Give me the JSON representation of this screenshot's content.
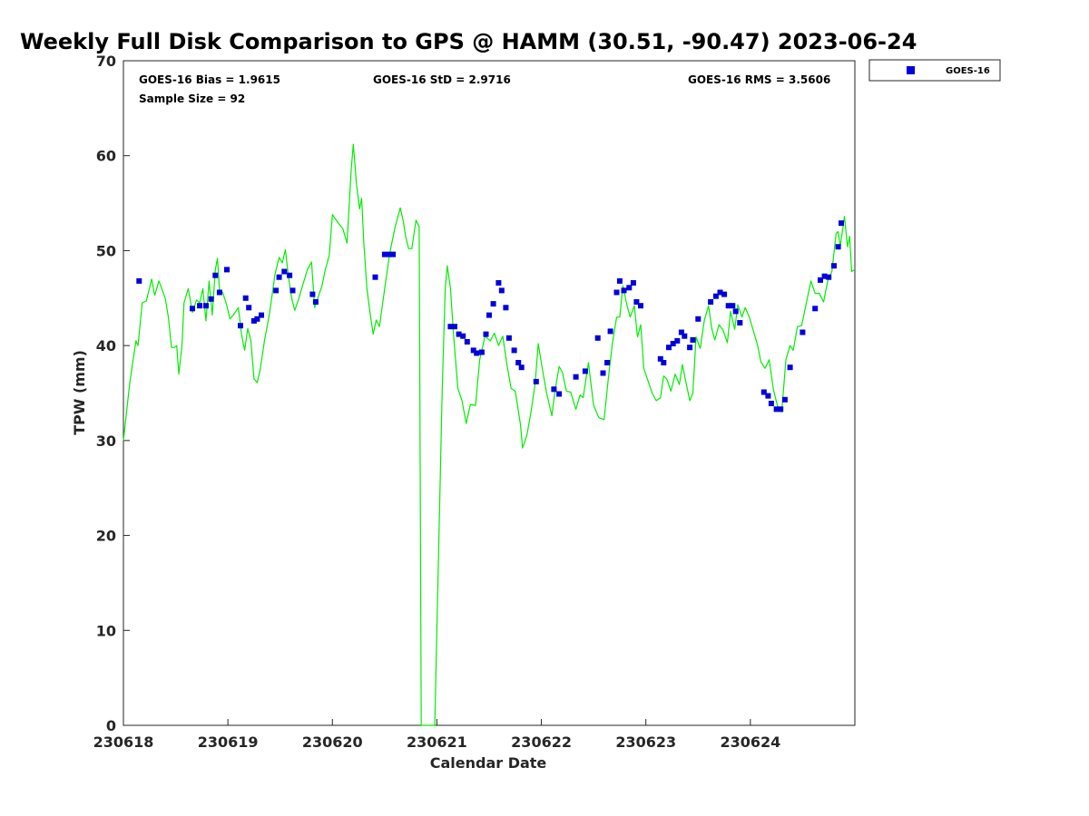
{
  "chart_data": {
    "type": "scatter",
    "title": "Weekly Full Disk Comparison to GPS @ HAMM (30.51, -90.47) 2023-06-24",
    "xlabel": "Calendar Date",
    "ylabel": "TPW (mm)",
    "xlim": [
      230618,
      230625
    ],
    "ylim": [
      0,
      70
    ],
    "grid": false,
    "legend_position": "top-right, outside plot",
    "x_ticks": [
      "230618",
      "230619",
      "230620",
      "230621",
      "230622",
      "230623",
      "230624"
    ],
    "y_ticks": [
      "0",
      "10",
      "20",
      "30",
      "40",
      "50",
      "60",
      "70"
    ],
    "stats": {
      "bias": "GOES-16 Bias = 1.9615",
      "std": "GOES-16 StD = 2.9716",
      "rms": "GOES-16 RMS = 3.5606",
      "sample": "Sample Size = 92"
    },
    "series": [
      {
        "name": "GOES-16",
        "kind": "scatter",
        "marker": "square",
        "color": "#0000dd",
        "points": [
          [
            0.15,
            46.8
          ],
          [
            0.66,
            43.9
          ],
          [
            0.73,
            44.2
          ],
          [
            0.79,
            44.2
          ],
          [
            0.84,
            44.9
          ],
          [
            0.88,
            47.4
          ],
          [
            0.92,
            45.6
          ],
          [
            0.99,
            48.0
          ],
          [
            1.12,
            42.1
          ],
          [
            1.17,
            45.0
          ],
          [
            1.2,
            44.0
          ],
          [
            1.25,
            42.6
          ],
          [
            1.28,
            42.8
          ],
          [
            1.32,
            43.2
          ],
          [
            1.46,
            45.8
          ],
          [
            1.49,
            47.2
          ],
          [
            1.54,
            47.8
          ],
          [
            1.59,
            47.4
          ],
          [
            1.62,
            45.8
          ],
          [
            1.81,
            45.4
          ],
          [
            1.84,
            44.6
          ],
          [
            2.41,
            47.2
          ],
          [
            2.5,
            49.6
          ],
          [
            2.54,
            49.6
          ],
          [
            2.58,
            49.6
          ],
          [
            3.13,
            42.0
          ],
          [
            3.17,
            42.0
          ],
          [
            3.21,
            41.2
          ],
          [
            3.25,
            41.0
          ],
          [
            3.29,
            40.4
          ],
          [
            3.35,
            39.5
          ],
          [
            3.38,
            39.2
          ],
          [
            3.43,
            39.3
          ],
          [
            3.47,
            41.2
          ],
          [
            3.5,
            43.2
          ],
          [
            3.54,
            44.4
          ],
          [
            3.59,
            46.6
          ],
          [
            3.62,
            45.8
          ],
          [
            3.66,
            44.0
          ],
          [
            3.69,
            40.8
          ],
          [
            3.74,
            39.5
          ],
          [
            3.78,
            38.2
          ],
          [
            3.81,
            37.7
          ],
          [
            3.95,
            36.2
          ],
          [
            4.12,
            35.4
          ],
          [
            4.17,
            34.9
          ],
          [
            4.33,
            36.7
          ],
          [
            4.42,
            37.3
          ],
          [
            4.54,
            40.8
          ],
          [
            4.59,
            37.1
          ],
          [
            4.63,
            38.2
          ],
          [
            4.66,
            41.5
          ],
          [
            4.72,
            45.6
          ],
          [
            4.75,
            46.8
          ],
          [
            4.79,
            45.8
          ],
          [
            4.84,
            46.1
          ],
          [
            4.88,
            46.6
          ],
          [
            4.91,
            44.6
          ],
          [
            4.95,
            44.2
          ],
          [
            5.14,
            38.6
          ],
          [
            5.17,
            38.2
          ],
          [
            5.22,
            39.8
          ],
          [
            5.26,
            40.2
          ],
          [
            5.3,
            40.5
          ],
          [
            5.34,
            41.4
          ],
          [
            5.37,
            41.0
          ],
          [
            5.42,
            39.8
          ],
          [
            5.45,
            40.6
          ],
          [
            5.5,
            42.8
          ],
          [
            5.62,
            44.6
          ],
          [
            5.67,
            45.2
          ],
          [
            5.71,
            45.6
          ],
          [
            5.75,
            45.4
          ],
          [
            5.79,
            44.2
          ],
          [
            5.83,
            44.2
          ],
          [
            5.86,
            43.6
          ],
          [
            5.9,
            42.4
          ],
          [
            6.13,
            35.1
          ],
          [
            6.17,
            34.7
          ],
          [
            6.2,
            33.9
          ],
          [
            6.25,
            33.3
          ],
          [
            6.29,
            33.3
          ],
          [
            6.33,
            34.3
          ],
          [
            6.38,
            37.7
          ],
          [
            6.5,
            41.4
          ],
          [
            6.62,
            43.9
          ],
          [
            6.67,
            46.9
          ],
          [
            6.71,
            47.3
          ],
          [
            6.75,
            47.2
          ],
          [
            6.8,
            48.4
          ],
          [
            6.84,
            50.4
          ],
          [
            6.87,
            52.9
          ]
        ]
      },
      {
        "name": "GPS",
        "kind": "line",
        "color": "#00ee00",
        "points": [
          [
            0.0,
            30.0
          ],
          [
            0.06,
            36.0
          ],
          [
            0.12,
            40.5
          ],
          [
            0.14,
            40.0
          ],
          [
            0.18,
            44.5
          ],
          [
            0.22,
            44.7
          ],
          [
            0.27,
            47.0
          ],
          [
            0.3,
            45.3
          ],
          [
            0.34,
            46.8
          ],
          [
            0.4,
            45.0
          ],
          [
            0.43,
            43.0
          ],
          [
            0.46,
            39.8
          ],
          [
            0.49,
            39.8
          ],
          [
            0.51,
            40.0
          ],
          [
            0.53,
            37.0
          ],
          [
            0.56,
            40.0
          ],
          [
            0.58,
            44.5
          ],
          [
            0.62,
            46.0
          ],
          [
            0.66,
            43.5
          ],
          [
            0.7,
            44.8
          ],
          [
            0.73,
            44.5
          ],
          [
            0.76,
            46.0
          ],
          [
            0.79,
            42.6
          ],
          [
            0.82,
            46.8
          ],
          [
            0.85,
            43.2
          ],
          [
            0.88,
            48.0
          ],
          [
            0.9,
            49.2
          ],
          [
            0.92,
            45.8
          ],
          [
            0.95,
            45.6
          ],
          [
            0.99,
            44.2
          ],
          [
            1.02,
            42.8
          ],
          [
            1.05,
            43.2
          ],
          [
            1.1,
            44.0
          ],
          [
            1.13,
            41.2
          ],
          [
            1.16,
            39.5
          ],
          [
            1.19,
            41.8
          ],
          [
            1.22,
            40.5
          ],
          [
            1.25,
            36.5
          ],
          [
            1.28,
            36.1
          ],
          [
            1.31,
            37.5
          ],
          [
            1.35,
            40.5
          ],
          [
            1.4,
            43.5
          ],
          [
            1.45,
            47.5
          ],
          [
            1.49,
            49.3
          ],
          [
            1.52,
            48.7
          ],
          [
            1.55,
            50.1
          ],
          [
            1.58,
            47.2
          ],
          [
            1.61,
            45.0
          ],
          [
            1.64,
            43.7
          ],
          [
            1.68,
            45.0
          ],
          [
            1.72,
            46.5
          ],
          [
            1.76,
            48.0
          ],
          [
            1.8,
            48.8
          ],
          [
            1.83,
            44.0
          ],
          [
            1.87,
            45.3
          ],
          [
            1.9,
            46.3
          ],
          [
            1.93,
            47.9
          ],
          [
            1.97,
            49.5
          ],
          [
            2.0,
            53.8
          ],
          [
            2.05,
            53.0
          ],
          [
            2.1,
            52.3
          ],
          [
            2.14,
            50.8
          ],
          [
            2.18,
            58.5
          ],
          [
            2.2,
            61.2
          ],
          [
            2.23,
            57.0
          ],
          [
            2.26,
            54.4
          ],
          [
            2.28,
            55.5
          ],
          [
            2.3,
            51.0
          ],
          [
            2.33,
            46.0
          ],
          [
            2.36,
            43.5
          ],
          [
            2.39,
            41.2
          ],
          [
            2.42,
            42.7
          ],
          [
            2.45,
            42.0
          ],
          [
            2.5,
            46.0
          ],
          [
            2.55,
            49.8
          ],
          [
            2.6,
            52.5
          ],
          [
            2.65,
            54.5
          ],
          [
            2.68,
            53.0
          ],
          [
            2.7,
            51.5
          ],
          [
            2.73,
            50.2
          ],
          [
            2.76,
            50.2
          ],
          [
            2.8,
            53.2
          ],
          [
            2.83,
            52.5
          ],
          [
            2.85,
            0.0
          ],
          [
            2.98,
            0.0
          ],
          [
            3.0,
            10.0
          ],
          [
            3.05,
            35.0
          ],
          [
            3.08,
            46.0
          ],
          [
            3.1,
            48.4
          ],
          [
            3.13,
            46.0
          ],
          [
            3.16,
            41.0
          ],
          [
            3.2,
            35.5
          ],
          [
            3.24,
            34.2
          ],
          [
            3.28,
            31.8
          ],
          [
            3.32,
            33.8
          ],
          [
            3.37,
            33.7
          ],
          [
            3.41,
            38.5
          ],
          [
            3.46,
            41.0
          ],
          [
            3.51,
            40.5
          ],
          [
            3.55,
            41.3
          ],
          [
            3.59,
            40.0
          ],
          [
            3.63,
            41.0
          ],
          [
            3.67,
            38.0
          ],
          [
            3.71,
            35.5
          ],
          [
            3.75,
            35.2
          ],
          [
            3.8,
            31.7
          ],
          [
            3.82,
            29.2
          ],
          [
            3.86,
            30.5
          ],
          [
            3.9,
            33.0
          ],
          [
            3.94,
            36.0
          ],
          [
            3.97,
            40.2
          ],
          [
            4.01,
            37.5
          ],
          [
            4.05,
            35.0
          ],
          [
            4.1,
            32.6
          ],
          [
            4.13,
            35.2
          ],
          [
            4.17,
            37.8
          ],
          [
            4.2,
            37.2
          ],
          [
            4.24,
            35.2
          ],
          [
            4.28,
            35.1
          ],
          [
            4.33,
            33.3
          ],
          [
            4.37,
            34.8
          ],
          [
            4.4,
            34.5
          ],
          [
            4.45,
            38.2
          ],
          [
            4.5,
            33.7
          ],
          [
            4.55,
            32.4
          ],
          [
            4.6,
            32.2
          ],
          [
            4.64,
            36.5
          ],
          [
            4.68,
            40.3
          ],
          [
            4.72,
            43.0
          ],
          [
            4.75,
            43.0
          ],
          [
            4.78,
            46.3
          ],
          [
            4.82,
            44.2
          ],
          [
            4.85,
            43.0
          ],
          [
            4.89,
            44.2
          ],
          [
            4.92,
            40.9
          ],
          [
            4.95,
            42.2
          ],
          [
            4.98,
            37.6
          ],
          [
            5.02,
            36.3
          ],
          [
            5.06,
            35.0
          ],
          [
            5.1,
            34.2
          ],
          [
            5.14,
            34.5
          ],
          [
            5.17,
            36.8
          ],
          [
            5.2,
            36.5
          ],
          [
            5.24,
            35.2
          ],
          [
            5.28,
            37.0
          ],
          [
            5.32,
            35.9
          ],
          [
            5.35,
            38.0
          ],
          [
            5.38,
            36.3
          ],
          [
            5.42,
            34.2
          ],
          [
            5.45,
            35.0
          ],
          [
            5.48,
            40.9
          ],
          [
            5.52,
            39.7
          ],
          [
            5.56,
            42.7
          ],
          [
            5.6,
            44.2
          ],
          [
            5.63,
            41.8
          ],
          [
            5.66,
            40.6
          ],
          [
            5.7,
            42.2
          ],
          [
            5.74,
            41.6
          ],
          [
            5.78,
            40.3
          ],
          [
            5.81,
            43.6
          ],
          [
            5.85,
            41.7
          ],
          [
            5.88,
            44.3
          ],
          [
            5.92,
            43.0
          ],
          [
            5.95,
            44.0
          ],
          [
            5.99,
            43.0
          ],
          [
            6.03,
            41.5
          ],
          [
            6.07,
            40.0
          ],
          [
            6.1,
            38.3
          ],
          [
            6.14,
            37.6
          ],
          [
            6.18,
            38.5
          ],
          [
            6.22,
            35.4
          ],
          [
            6.26,
            33.6
          ],
          [
            6.3,
            33.0
          ],
          [
            6.34,
            38.5
          ],
          [
            6.38,
            40.0
          ],
          [
            6.41,
            39.5
          ],
          [
            6.45,
            42.0
          ],
          [
            6.49,
            42.1
          ],
          [
            6.53,
            44.2
          ],
          [
            6.58,
            46.8
          ],
          [
            6.62,
            45.5
          ],
          [
            6.66,
            45.5
          ],
          [
            6.7,
            44.6
          ],
          [
            6.74,
            46.8
          ],
          [
            6.78,
            47.8
          ],
          [
            6.82,
            51.8
          ],
          [
            6.84,
            52.0
          ],
          [
            6.86,
            50.4
          ],
          [
            6.9,
            53.6
          ],
          [
            6.93,
            50.4
          ],
          [
            6.95,
            51.5
          ],
          [
            6.97,
            47.8
          ],
          [
            7.0,
            48.0
          ]
        ]
      }
    ]
  },
  "legend": {
    "label": "GOES-16",
    "color": "#0000dd"
  }
}
